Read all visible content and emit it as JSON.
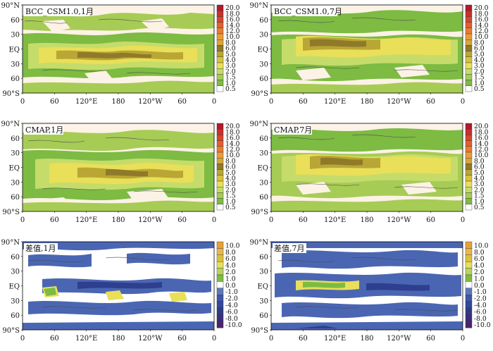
{
  "panels": [
    {
      "id": "bcc-jan",
      "title": "BCC_CSM1.0,1月",
      "scale": "precip"
    },
    {
      "id": "bcc-jul",
      "title": "BCC_CSM1.0,7月",
      "scale": "precip"
    },
    {
      "id": "cmap-jan",
      "title": "CMAP,1月",
      "scale": "precip"
    },
    {
      "id": "cmap-jul",
      "title": "CMAP,7月",
      "scale": "precip"
    },
    {
      "id": "diff-jan",
      "title": "差值,1月",
      "scale": "diff"
    },
    {
      "id": "diff-jul",
      "title": "差值,7月",
      "scale": "diff"
    }
  ],
  "lat_labels": [
    "90°N",
    "60",
    "30",
    "EQ",
    "30",
    "60",
    "90°S"
  ],
  "lon_labels": [
    "0",
    "60",
    "120°E",
    "180",
    "120°W",
    "60",
    "0"
  ],
  "precip_levels": [
    "20.0",
    "18.0",
    "16.0",
    "14.0",
    "12.0",
    "10.0",
    "8.0",
    "6.0",
    "5.0",
    "4.0",
    "3.0",
    "2.0",
    "1.5",
    "1.0",
    "0.5"
  ],
  "precip_colors": [
    "#b2182b",
    "#c8302a",
    "#d6452c",
    "#e1602f",
    "#e87c33",
    "#ee9a39",
    "#d9a43a",
    "#8f7a2a",
    "#b9a634",
    "#d9c23c",
    "#e9df58",
    "#c5dc6a",
    "#a6cc55",
    "#7dbb42",
    "#ffffff"
  ],
  "diff_levels": [
    "10.0",
    "8.0",
    "6.0",
    "4.0",
    "2.0",
    "1.0",
    "0.0",
    "-1.0",
    "-2.0",
    "-4.0",
    "-6.0",
    "-8.0",
    "-10.0"
  ],
  "diff_colors": [
    "#e8a03a",
    "#e8b84a",
    "#d9c23c",
    "#e9df58",
    "#b5d460",
    "#7dbb42",
    "#ffffff",
    "#5a78bd",
    "#3f56a8",
    "#33479a",
    "#2d3b88",
    "#3c2d7e",
    "#4a2470"
  ],
  "colors": {
    "ocean_low": "#fdf2e6",
    "green_light": "#a6cc55",
    "green_mid": "#6fb040",
    "yellow": "#e9df58",
    "olive": "#a08a30",
    "dark": "#6b5420",
    "blue": "#4a66b3",
    "blue_dark": "#2f3f8f",
    "coast": "#4a4a4a"
  }
}
